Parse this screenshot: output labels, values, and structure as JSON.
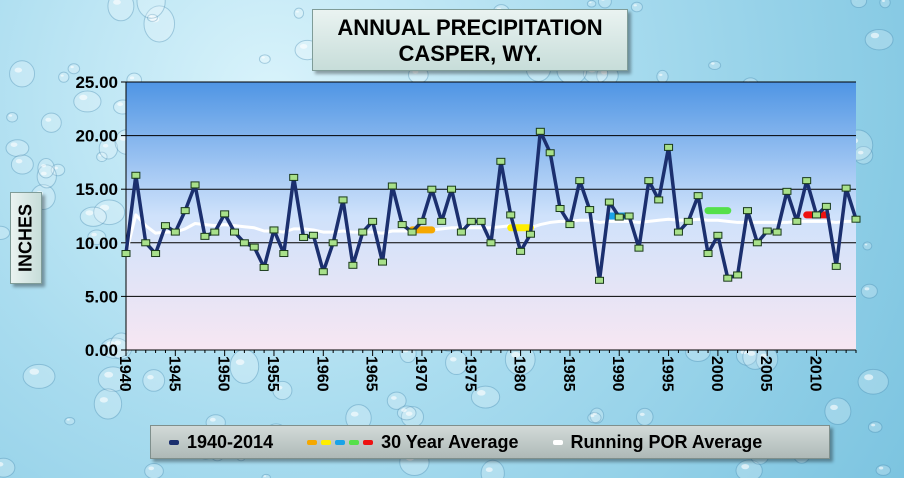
{
  "chart_data": {
    "type": "line",
    "title_line1": "ANNUAL PRECIPITATION",
    "title_line2": "CASPER, WY.",
    "ylabel": "INCHES",
    "ylim": [
      0,
      25
    ],
    "xlim": [
      1940,
      2014
    ],
    "yticks": [
      "0.00",
      "5.00",
      "10.00",
      "15.00",
      "20.00",
      "25.00"
    ],
    "xticks": [
      "1940",
      "1945",
      "1950",
      "1955",
      "1960",
      "1965",
      "1970",
      "1975",
      "1980",
      "1985",
      "1990",
      "1995",
      "2000",
      "2005",
      "2010"
    ],
    "grid": true,
    "legend_position": "bottom",
    "series": [
      {
        "name": "1940-2014",
        "color": "#1b2f6e",
        "x": [
          1940,
          1941,
          1942,
          1943,
          1944,
          1945,
          1946,
          1947,
          1948,
          1949,
          1950,
          1951,
          1952,
          1953,
          1954,
          1955,
          1956,
          1957,
          1958,
          1959,
          1960,
          1961,
          1962,
          1963,
          1964,
          1965,
          1966,
          1967,
          1968,
          1969,
          1970,
          1971,
          1972,
          1973,
          1974,
          1975,
          1976,
          1977,
          1978,
          1979,
          1980,
          1981,
          1982,
          1983,
          1984,
          1985,
          1986,
          1987,
          1988,
          1989,
          1990,
          1991,
          1992,
          1993,
          1994,
          1995,
          1996,
          1997,
          1998,
          1999,
          2000,
          2001,
          2002,
          2003,
          2004,
          2005,
          2006,
          2007,
          2008,
          2009,
          2010,
          2011,
          2012,
          2013,
          2014
        ],
        "values": [
          9.0,
          16.3,
          10.0,
          9.0,
          11.6,
          11.0,
          13.0,
          15.4,
          10.6,
          11.0,
          12.7,
          11.0,
          10.0,
          9.6,
          7.7,
          11.2,
          9.0,
          16.1,
          10.5,
          10.7,
          7.3,
          10.0,
          14.0,
          7.9,
          11.0,
          12.0,
          8.2,
          15.3,
          11.7,
          11.0,
          12.0,
          15.0,
          12.0,
          15.0,
          11.0,
          12.0,
          12.0,
          10.0,
          17.6,
          12.6,
          9.2,
          10.8,
          20.4,
          18.4,
          13.2,
          11.7,
          15.8,
          13.1,
          6.5,
          13.8,
          12.4,
          12.5,
          9.5,
          15.8,
          14.0,
          18.9,
          11.0,
          12.0,
          14.4,
          9.0,
          10.7,
          6.7,
          7.0,
          13.0,
          10.0,
          11.1,
          11.0,
          14.8,
          12.0,
          15.8,
          12.6,
          13.4,
          7.8,
          15.1,
          12.2
        ]
      },
      {
        "name": "30 Year Average",
        "segments": [
          {
            "x": [
              1969,
              1971
            ],
            "y": 11.2,
            "color": "#f5a800"
          },
          {
            "x": [
              1979,
              1981
            ],
            "y": 11.4,
            "color": "#ffee00"
          },
          {
            "x": [
              1989,
              1991
            ],
            "y": 12.5,
            "color": "#1aa3e8"
          },
          {
            "x": [
              1999,
              2001
            ],
            "y": 13.0,
            "color": "#55e04a"
          },
          {
            "x": [
              2009,
              2011
            ],
            "y": 12.6,
            "color": "#ee1111"
          }
        ]
      },
      {
        "name": "Running POR Average",
        "color": "#ffffff",
        "x": [
          1940,
          1941,
          1942,
          1943,
          1944,
          1945,
          1946,
          1947,
          1948,
          1949,
          1950,
          1951,
          1952,
          1953,
          1954,
          1955,
          1956,
          1957,
          1958,
          1959,
          1960,
          1961,
          1962,
          1963,
          1964,
          1965,
          1966,
          1967,
          1968,
          1969,
          1970,
          1971,
          1972,
          1973,
          1974,
          1975,
          1976,
          1977,
          1978,
          1979,
          1980,
          1981,
          1982,
          1983,
          1984,
          1985,
          1986,
          1987,
          1988,
          1989,
          1990,
          1991,
          1992,
          1993,
          1994,
          1995,
          1996,
          1997,
          1998,
          1999,
          2000,
          2001,
          2002,
          2003,
          2004,
          2005,
          2006,
          2007,
          2008,
          2009,
          2010,
          2011,
          2012,
          2013,
          2014
        ],
        "values": [
          9.0,
          12.6,
          11.6,
          10.9,
          11.0,
          11.0,
          11.3,
          11.8,
          11.7,
          11.6,
          11.7,
          11.6,
          11.5,
          11.4,
          11.1,
          11.1,
          11.0,
          11.3,
          11.3,
          11.2,
          11.0,
          11.0,
          11.1,
          11.0,
          11.0,
          11.0,
          10.9,
          11.1,
          11.1,
          11.1,
          11.1,
          11.2,
          11.3,
          11.4,
          11.4,
          11.4,
          11.4,
          11.4,
          11.5,
          11.6,
          11.5,
          11.4,
          11.7,
          11.9,
          12.0,
          12.0,
          12.1,
          12.1,
          11.9,
          12.0,
          12.0,
          12.0,
          11.9,
          12.0,
          12.1,
          12.2,
          12.1,
          12.1,
          12.2,
          12.1,
          12.1,
          12.0,
          11.9,
          11.9,
          11.9,
          11.9,
          11.9,
          11.9,
          12.0,
          12.0,
          12.0,
          12.0,
          11.9,
          12.0,
          12.0
        ]
      }
    ]
  },
  "legend": {
    "item1": "1940-2014",
    "item2": "30 Year Average",
    "item3": "Running POR Average"
  },
  "colors": {
    "plot_top": "#4f95e4",
    "plot_mid": "#cfe2fb",
    "plot_bottom": "#f7e6f2"
  }
}
